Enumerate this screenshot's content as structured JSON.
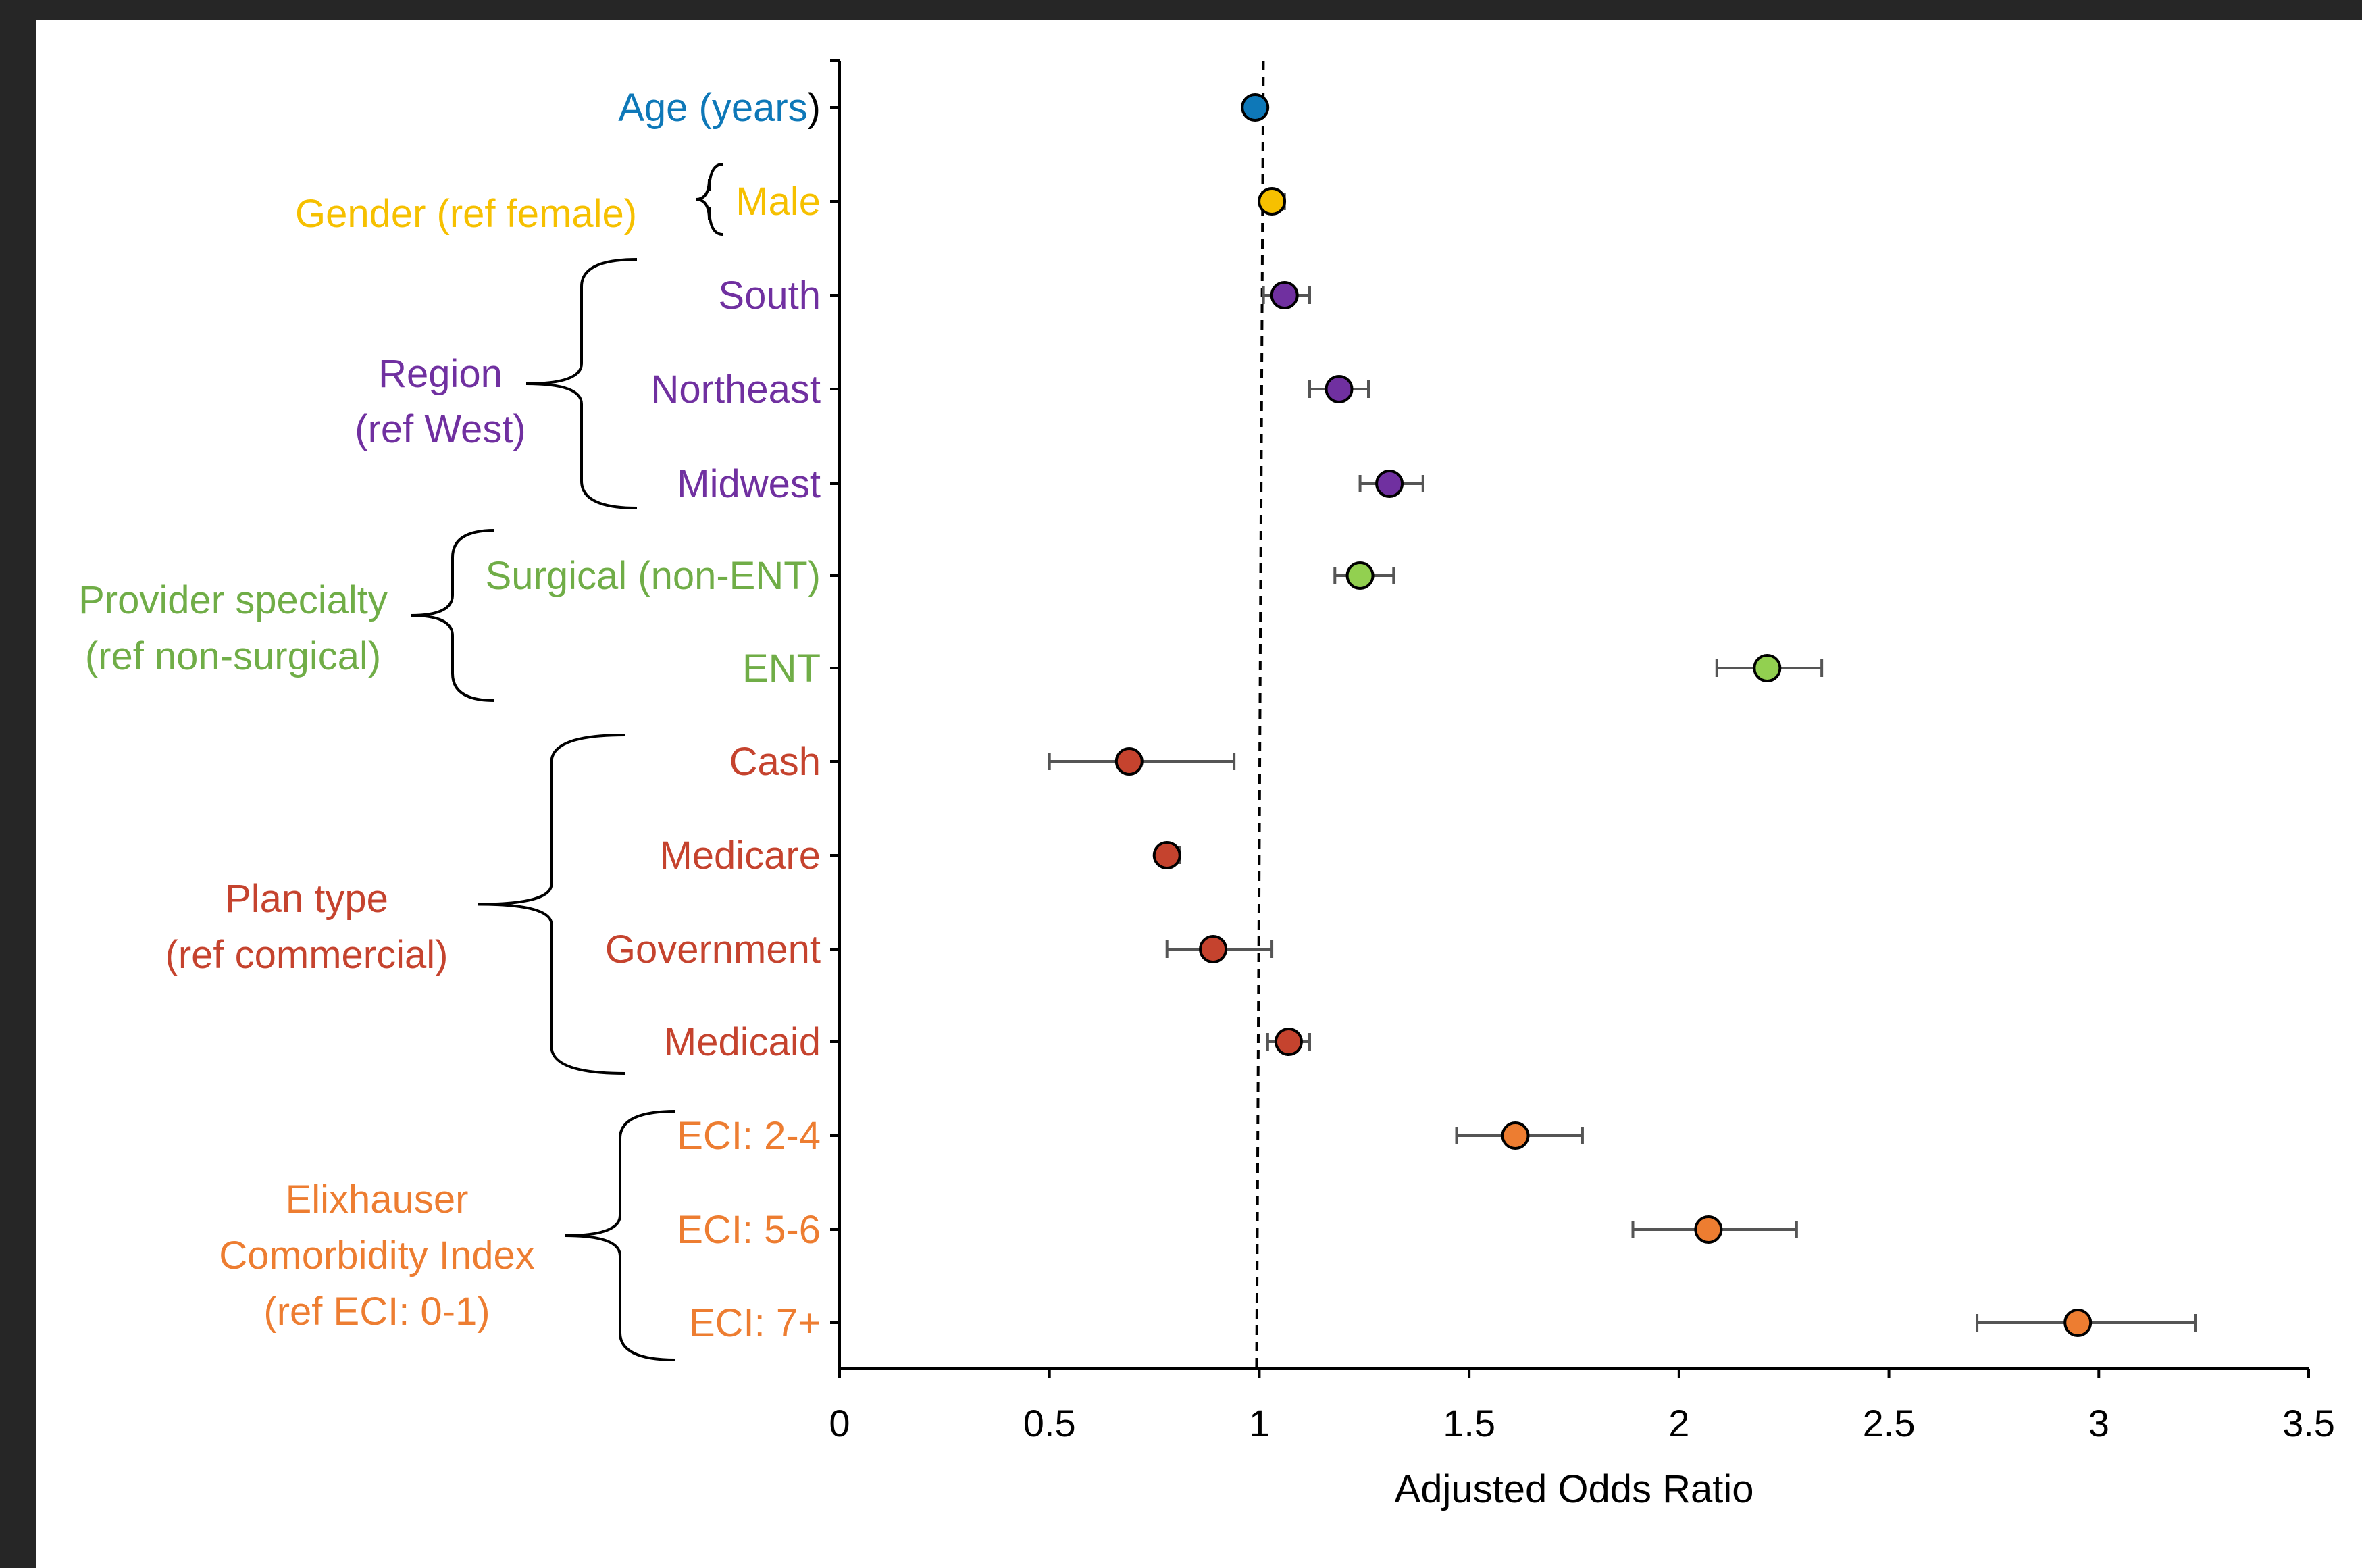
{
  "chart_data": {
    "type": "scatter",
    "subtype": "forest-plot",
    "xlabel": "Adjusted Odds Ratio",
    "xlim": [
      0,
      3.5
    ],
    "xticks": [
      "0",
      "0.5",
      "1",
      "1.5",
      "2",
      "2.5",
      "3",
      "3.5"
    ],
    "reference_line": 1,
    "grid": false,
    "legend": "none",
    "rows": [
      {
        "label": "Age (years",
        "label_suffix": ")",
        "or": 0.99,
        "lo": 0.99,
        "hi": 0.99,
        "color": "#0E78B8",
        "group": 0
      },
      {
        "label": "Male",
        "or": 1.03,
        "lo": 1.01,
        "hi": 1.06,
        "color": "#F6C000",
        "group": 1
      },
      {
        "label": "South",
        "or": 1.06,
        "lo": 1.01,
        "hi": 1.12,
        "color": "#7030A0",
        "group": 2
      },
      {
        "label": "Northeast",
        "or": 1.19,
        "lo": 1.12,
        "hi": 1.26,
        "color": "#7030A0",
        "group": 2
      },
      {
        "label": "Midwest",
        "or": 1.31,
        "lo": 1.24,
        "hi": 1.39,
        "color": "#7030A0",
        "group": 2
      },
      {
        "label": "Surgical (non-ENT)",
        "or": 1.24,
        "lo": 1.18,
        "hi": 1.32,
        "color": "#92D050",
        "group": 3
      },
      {
        "label": "ENT",
        "or": 2.21,
        "lo": 2.09,
        "hi": 2.34,
        "color": "#92D050",
        "group": 3
      },
      {
        "label": "Cash",
        "or": 0.69,
        "lo": 0.5,
        "hi": 0.94,
        "color": "#C5432E",
        "group": 4
      },
      {
        "label": "Medicare",
        "or": 0.78,
        "lo": 0.76,
        "hi": 0.81,
        "color": "#C5432E",
        "group": 4
      },
      {
        "label": "Government",
        "or": 0.89,
        "lo": 0.78,
        "hi": 1.03,
        "color": "#C5432E",
        "group": 4
      },
      {
        "label": "Medicaid",
        "or": 1.07,
        "lo": 1.02,
        "hi": 1.12,
        "color": "#C5432E",
        "group": 4
      },
      {
        "label": "ECI: 2-4",
        "or": 1.61,
        "lo": 1.47,
        "hi": 1.77,
        "color": "#ED7D31",
        "group": 5
      },
      {
        "label": "ECI: 5-6",
        "or": 2.07,
        "lo": 1.89,
        "hi": 2.28,
        "color": "#ED7D31",
        "group": 5
      },
      {
        "label": "ECI: 7+",
        "or": 2.95,
        "lo": 2.71,
        "hi": 3.23,
        "color": "#ED7D31",
        "group": 5
      }
    ],
    "groups": [
      {
        "lines": [],
        "color": "#0E78B8"
      },
      {
        "lines": [
          "Gender (ref female)"
        ],
        "color": "#F6C000"
      },
      {
        "lines": [
          "Region",
          "(ref West)"
        ],
        "color": "#7030A0"
      },
      {
        "lines": [
          "Provider specialty",
          "(ref non-surgical)"
        ],
        "color": "#70AD47"
      },
      {
        "lines": [
          "Plan type",
          "(ref commercial)"
        ],
        "color": "#C5432E"
      },
      {
        "lines": [
          "Elixhauser",
          "Comorbidity Index",
          "(ref ECI: 0-1)"
        ],
        "color": "#ED7D31"
      }
    ],
    "row_label_colors": {
      "0": "#0E78B8",
      "1": "#F6C000",
      "2": "#7030A0",
      "3": "#70AD47",
      "4": "#C5432E",
      "5": "#ED7D31"
    }
  }
}
